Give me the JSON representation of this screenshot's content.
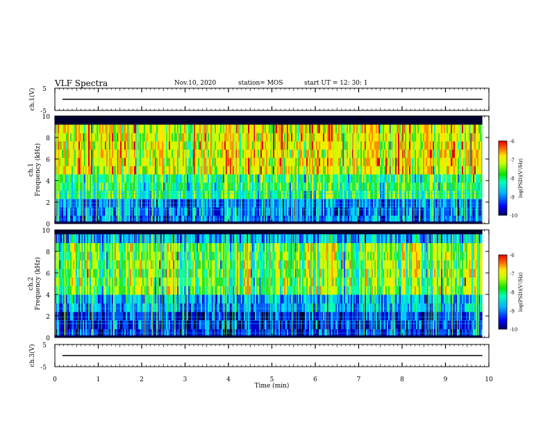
{
  "header": {
    "title": "VLF Spectra",
    "date": "Nov.10, 2020",
    "station": "station= MOS",
    "start_ut": "start  UT =   12: 30: 1"
  },
  "colors": {
    "palette": [
      "#000030",
      "#0000c8",
      "#0050ff",
      "#00c8ff",
      "#00ffb4",
      "#28e628",
      "#c8ff00",
      "#ffe600",
      "#ff8c00",
      "#e60000"
    ]
  },
  "chart_data": [
    {
      "type": "line",
      "name": "ch1_waveform",
      "ylabel": "ch.1(V)",
      "ylim": [
        -5,
        5
      ],
      "yticks": [
        "5",
        "-5"
      ],
      "xlim": [
        0,
        10
      ],
      "series": [
        {
          "values_constant": 0
        }
      ]
    },
    {
      "type": "heatmap",
      "name": "ch1_spectrogram",
      "ylabel_line1": "ch.1",
      "ylabel_line2": "Frequency  (kHz)",
      "ylim": [
        0,
        10
      ],
      "yticks": [
        "0",
        "2",
        "4",
        "6",
        "8",
        "10"
      ],
      "xlim": [
        0,
        10
      ],
      "data_xmax": 9.85,
      "band_top_khz": 9.2,
      "colorbar": {
        "min": -10,
        "max": -6,
        "label": "log(PSD)(V²/Hz)",
        "ticks": [
          "-6",
          "-7",
          "-8",
          "-9",
          "-10"
        ]
      }
    },
    {
      "type": "heatmap",
      "name": "ch2_spectrogram",
      "ylabel_line1": "ch.2",
      "ylabel_line2": "Frequency  (kHz)",
      "ylim": [
        0,
        10
      ],
      "yticks": [
        "0",
        "2",
        "4",
        "6",
        "8",
        "10"
      ],
      "xlim": [
        0,
        10
      ],
      "data_xmax": 9.85,
      "band_top_khz": 9.6,
      "colorbar": {
        "min": -10,
        "max": -6,
        "label": "log(PSD)(V²/Hz)",
        "ticks": [
          "-6",
          "-7",
          "-8",
          "-9",
          "-10"
        ]
      }
    },
    {
      "type": "line",
      "name": "ch3_waveform",
      "ylabel": "ch.3(V)",
      "ylim": [
        -5,
        5
      ],
      "yticks": [
        "5",
        "-5"
      ],
      "xlim": [
        0,
        10
      ],
      "xlabel": "Time  (min)",
      "xticks": [
        "0",
        "1",
        "2",
        "3",
        "4",
        "5",
        "6",
        "7",
        "8",
        "9",
        "10"
      ],
      "series": [
        {
          "values_constant": 0
        }
      ]
    }
  ]
}
